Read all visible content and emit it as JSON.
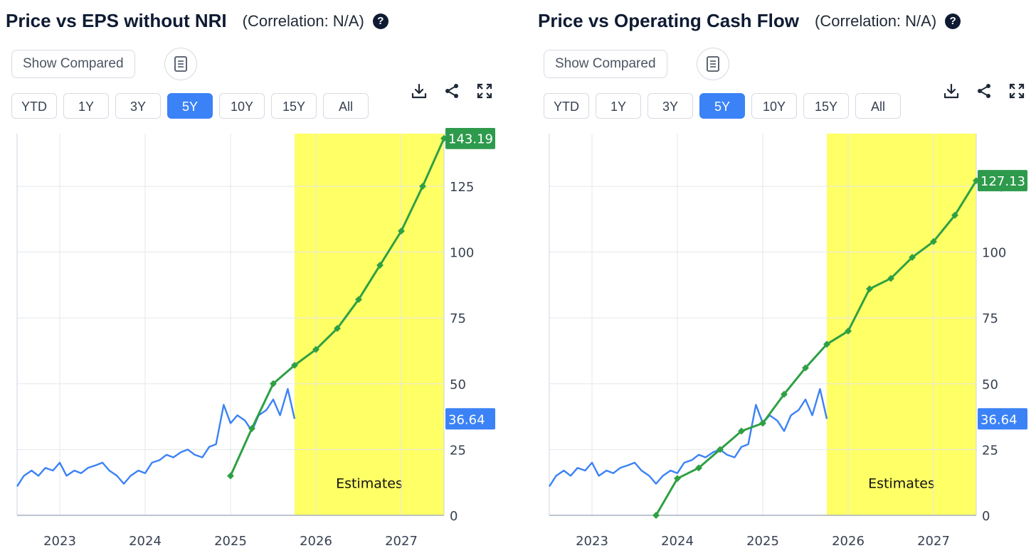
{
  "panels": [
    {
      "title": "Price vs EPS without NRI",
      "correlation": "(Correlation: N/A)",
      "help_label": "?",
      "show_compared_label": "Show Compared",
      "ranges": [
        "YTD",
        "1Y",
        "3Y",
        "5Y",
        "10Y",
        "15Y",
        "All"
      ],
      "active_range": "5Y"
    },
    {
      "title": "Price vs Operating Cash Flow",
      "correlation": "(Correlation: N/A)",
      "help_label": "?",
      "show_compared_label": "Show Compared",
      "ranges": [
        "YTD",
        "1Y",
        "3Y",
        "5Y",
        "10Y",
        "15Y",
        "All"
      ],
      "active_range": "5Y"
    }
  ],
  "colors": {
    "price": "#3b82f6",
    "metric": "#2ea043",
    "metric_label_bg": "#2e9a4c",
    "estimates_bg": "#ffff66",
    "grid": "#e5e7eb",
    "active_button": "#3b82f6"
  },
  "chart_data": [
    {
      "type": "line",
      "title": "Price vs EPS without NRI",
      "x_ticks": [
        "2023",
        "2024",
        "2025",
        "2026",
        "2027"
      ],
      "y_ticks": [
        0,
        25,
        50,
        75,
        100,
        125
      ],
      "ylim": [
        0,
        145
      ],
      "xlim": [
        2022.5,
        2027.5
      ],
      "estimates_start": 2025.75,
      "estimates_label": "Estimates",
      "series": [
        {
          "name": "Price",
          "last_value_label": "36.64",
          "x": [
            2022.5,
            2022.58,
            2022.67,
            2022.75,
            2022.83,
            2022.92,
            2023.0,
            2023.08,
            2023.17,
            2023.25,
            2023.33,
            2023.42,
            2023.5,
            2023.58,
            2023.67,
            2023.75,
            2023.83,
            2023.92,
            2024.0,
            2024.08,
            2024.17,
            2024.25,
            2024.33,
            2024.42,
            2024.5,
            2024.58,
            2024.67,
            2024.75,
            2024.83,
            2024.92,
            2025.0,
            2025.08,
            2025.17,
            2025.25,
            2025.33,
            2025.42,
            2025.5,
            2025.58,
            2025.67,
            2025.75
          ],
          "values": [
            11,
            15,
            17,
            15,
            18,
            17,
            20,
            15,
            17,
            16,
            18,
            19,
            20,
            17,
            15,
            12,
            15,
            17,
            16,
            20,
            21,
            23,
            22,
            24,
            25,
            23,
            22,
            26,
            27,
            42,
            35,
            38,
            36,
            32,
            38,
            40,
            44,
            38,
            48,
            36.64
          ]
        },
        {
          "name": "EPS without NRI",
          "last_value_label": "143.19",
          "x": [
            2025.0,
            2025.25,
            2025.5,
            2025.75,
            2026.0,
            2026.25,
            2026.5,
            2026.75,
            2027.0,
            2027.25,
            2027.5
          ],
          "values": [
            15,
            33,
            50,
            57,
            63,
            71,
            82,
            95,
            108,
            125,
            143.19
          ]
        }
      ]
    },
    {
      "type": "line",
      "title": "Price vs Operating Cash Flow",
      "x_ticks": [
        "2023",
        "2024",
        "2025",
        "2026",
        "2027"
      ],
      "y_ticks": [
        0,
        25,
        50,
        75,
        100,
        125
      ],
      "ylim": [
        0,
        145
      ],
      "xlim": [
        2022.5,
        2027.5
      ],
      "estimates_start": 2025.75,
      "estimates_label": "Estimates",
      "series": [
        {
          "name": "Price",
          "last_value_label": "36.64",
          "x": [
            2022.5,
            2022.58,
            2022.67,
            2022.75,
            2022.83,
            2022.92,
            2023.0,
            2023.08,
            2023.17,
            2023.25,
            2023.33,
            2023.42,
            2023.5,
            2023.58,
            2023.67,
            2023.75,
            2023.83,
            2023.92,
            2024.0,
            2024.08,
            2024.17,
            2024.25,
            2024.33,
            2024.42,
            2024.5,
            2024.58,
            2024.67,
            2024.75,
            2024.83,
            2024.92,
            2025.0,
            2025.08,
            2025.17,
            2025.25,
            2025.33,
            2025.42,
            2025.5,
            2025.58,
            2025.67,
            2025.75
          ],
          "values": [
            11,
            15,
            17,
            15,
            18,
            17,
            20,
            15,
            17,
            16,
            18,
            19,
            20,
            17,
            15,
            12,
            15,
            17,
            16,
            20,
            21,
            23,
            22,
            24,
            25,
            23,
            22,
            26,
            27,
            42,
            35,
            38,
            36,
            32,
            38,
            40,
            44,
            38,
            48,
            36.64
          ]
        },
        {
          "name": "Operating Cash Flow",
          "last_value_label": "127.13",
          "x": [
            2023.75,
            2024.0,
            2024.25,
            2024.5,
            2024.75,
            2025.0,
            2025.25,
            2025.5,
            2025.75,
            2026.0,
            2026.25,
            2026.5,
            2026.75,
            2027.0,
            2027.25,
            2027.5
          ],
          "values": [
            0,
            14,
            18,
            25,
            32,
            35,
            46,
            56,
            65,
            70,
            86,
            90,
            98,
            104,
            114,
            127.13
          ]
        }
      ]
    }
  ]
}
